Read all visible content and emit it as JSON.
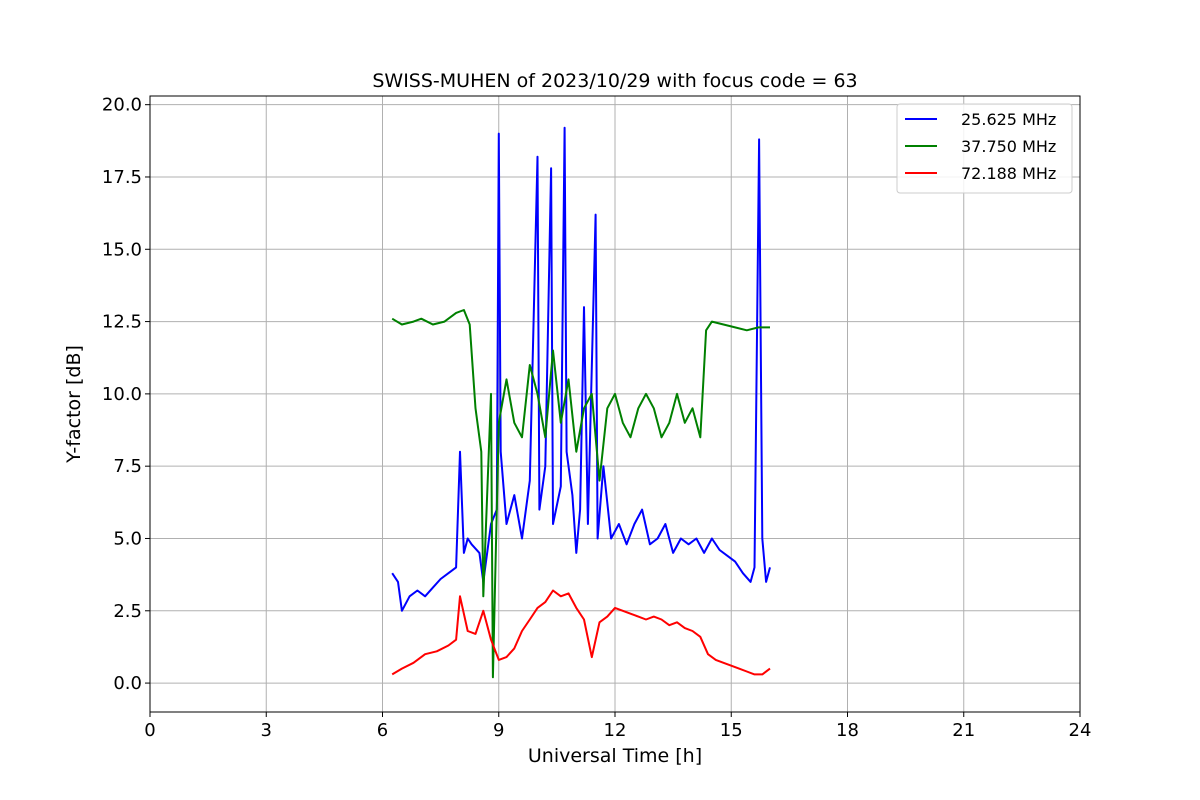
{
  "chart_data": {
    "type": "line",
    "title": "SWISS-MUHEN of 2023/10/29 with focus code = 63",
    "xlabel": "Universal Time [h]",
    "ylabel": "Y-factor [dB]",
    "xlim": [
      0,
      24
    ],
    "ylim": [
      -1,
      20.3
    ],
    "xticks": [
      0,
      3,
      6,
      9,
      12,
      15,
      18,
      21,
      24
    ],
    "xtick_labels": [
      "0",
      "3",
      "6",
      "9",
      "12",
      "15",
      "18",
      "21",
      "24"
    ],
    "yticks": [
      0,
      2.5,
      5,
      7.5,
      10,
      12.5,
      15,
      17.5,
      20
    ],
    "ytick_labels": [
      "0.0",
      "2.5",
      "5.0",
      "7.5",
      "10.0",
      "12.5",
      "15.0",
      "17.5",
      "20.0"
    ],
    "grid": true,
    "legend_position": "top-right",
    "series": [
      {
        "name": "25.625 MHz",
        "color": "#0000ff",
        "x": [
          6.25,
          6.4,
          6.5,
          6.7,
          6.9,
          7.1,
          7.3,
          7.5,
          7.7,
          7.9,
          8.0,
          8.1,
          8.2,
          8.3,
          8.5,
          8.6,
          8.8,
          8.95,
          9.0,
          9.05,
          9.2,
          9.4,
          9.6,
          9.8,
          10.0,
          10.05,
          10.2,
          10.35,
          10.4,
          10.6,
          10.7,
          10.75,
          10.9,
          11.0,
          11.1,
          11.2,
          11.3,
          11.5,
          11.55,
          11.7,
          11.9,
          12.1,
          12.3,
          12.5,
          12.7,
          12.9,
          13.1,
          13.3,
          13.5,
          13.7,
          13.9,
          14.1,
          14.3,
          14.5,
          14.7,
          14.9,
          15.1,
          15.3,
          15.5,
          15.6,
          15.72,
          15.8,
          15.9,
          16.0
        ],
        "y": [
          3.8,
          3.5,
          2.5,
          3.0,
          3.2,
          3.0,
          3.3,
          3.6,
          3.8,
          4.0,
          8.0,
          4.5,
          5.0,
          4.8,
          4.5,
          3.5,
          5.5,
          6.0,
          19.0,
          8.0,
          5.5,
          6.5,
          5.0,
          7.0,
          18.2,
          6.0,
          7.5,
          17.8,
          5.5,
          6.8,
          19.2,
          8.0,
          6.5,
          4.5,
          6.0,
          13.0,
          5.5,
          16.2,
          5.0,
          7.5,
          5.0,
          5.5,
          4.8,
          5.5,
          6.0,
          4.8,
          5.0,
          5.5,
          4.5,
          5.0,
          4.8,
          5.0,
          4.5,
          5.0,
          4.6,
          4.4,
          4.2,
          3.8,
          3.5,
          4.0,
          18.8,
          5.0,
          3.5,
          4.0
        ]
      },
      {
        "name": "37.750 MHz",
        "color": "#008000",
        "x": [
          6.25,
          6.5,
          6.8,
          7.0,
          7.3,
          7.6,
          7.9,
          8.1,
          8.25,
          8.4,
          8.55,
          8.6,
          8.8,
          8.85,
          9.0,
          9.2,
          9.4,
          9.6,
          9.8,
          10.0,
          10.2,
          10.4,
          10.6,
          10.8,
          11.0,
          11.2,
          11.4,
          11.6,
          11.8,
          12.0,
          12.2,
          12.4,
          12.6,
          12.8,
          13.0,
          13.2,
          13.4,
          13.6,
          13.8,
          14.0,
          14.2,
          14.35,
          14.5,
          14.8,
          15.1,
          15.4,
          15.7,
          16.0
        ],
        "y": [
          12.6,
          12.4,
          12.5,
          12.6,
          12.4,
          12.5,
          12.8,
          12.9,
          12.4,
          9.5,
          8.0,
          3.0,
          10.0,
          0.2,
          9.0,
          10.5,
          9.0,
          8.5,
          11.0,
          10.0,
          8.5,
          11.5,
          9.0,
          10.5,
          8.0,
          9.5,
          10.0,
          7.0,
          9.5,
          10.0,
          9.0,
          8.5,
          9.5,
          10.0,
          9.5,
          8.5,
          9.0,
          10.0,
          9.0,
          9.5,
          8.5,
          12.2,
          12.5,
          12.4,
          12.3,
          12.2,
          12.3,
          12.3
        ]
      },
      {
        "name": "72.188 MHz",
        "color": "#ff0000",
        "x": [
          6.25,
          6.5,
          6.8,
          7.1,
          7.4,
          7.7,
          7.9,
          8.0,
          8.2,
          8.4,
          8.6,
          8.8,
          9.0,
          9.2,
          9.4,
          9.6,
          9.8,
          10.0,
          10.2,
          10.4,
          10.6,
          10.8,
          11.0,
          11.2,
          11.4,
          11.6,
          11.8,
          12.0,
          12.2,
          12.4,
          12.6,
          12.8,
          13.0,
          13.2,
          13.4,
          13.6,
          13.8,
          14.0,
          14.2,
          14.4,
          14.6,
          14.8,
          15.0,
          15.2,
          15.4,
          15.6,
          15.8,
          16.0
        ],
        "y": [
          0.3,
          0.5,
          0.7,
          1.0,
          1.1,
          1.3,
          1.5,
          3.0,
          1.8,
          1.7,
          2.5,
          1.5,
          0.8,
          0.9,
          1.2,
          1.8,
          2.2,
          2.6,
          2.8,
          3.2,
          3.0,
          3.1,
          2.6,
          2.2,
          0.9,
          2.1,
          2.3,
          2.6,
          2.5,
          2.4,
          2.3,
          2.2,
          2.3,
          2.2,
          2.0,
          2.1,
          1.9,
          1.8,
          1.6,
          1.0,
          0.8,
          0.7,
          0.6,
          0.5,
          0.4,
          0.3,
          0.3,
          0.5
        ]
      }
    ]
  }
}
